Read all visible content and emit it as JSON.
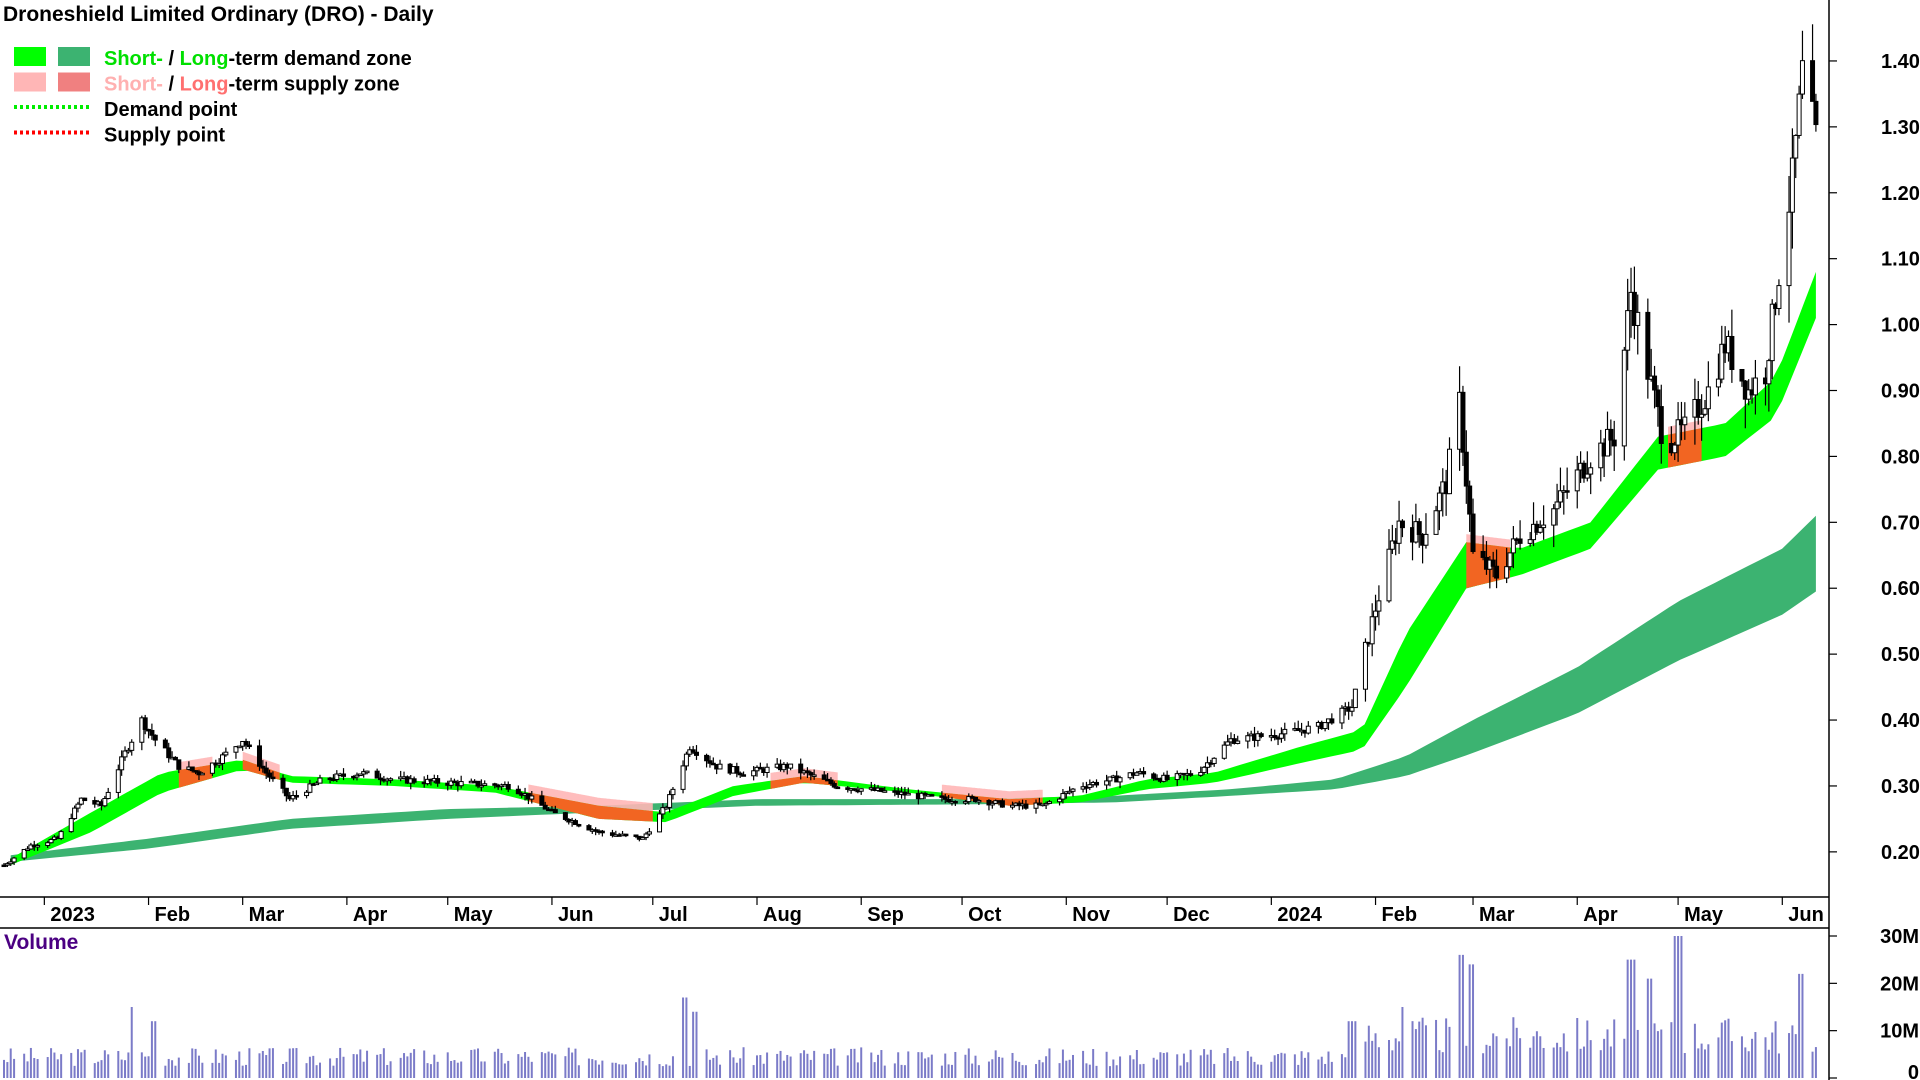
{
  "chart_data": {
    "type": "candlestick",
    "title": "Droneshield Limited Ordinary (DRO) - Daily",
    "colors": {
      "short_demand": "#00ff00",
      "long_demand": "#3cb371",
      "short_supply": "#ffb6b6",
      "long_supply": "#f08080",
      "zone_overlap": "#f26522",
      "volume_bar": "#7b7bc8",
      "volume_title": "#4b0082",
      "demand_point": "#00ee00",
      "supply_point": "#ff0000"
    },
    "legend": [
      {
        "parts": [
          {
            "text": "Short-",
            "color": "#00e000"
          },
          {
            "text": " / ",
            "color": "#000000"
          },
          {
            "text": "Long",
            "color": "#00e000"
          },
          {
            "text": "-term demand zone",
            "color": "#000000"
          }
        ],
        "swatches": [
          "#00ff00",
          "#3cb371"
        ]
      },
      {
        "parts": [
          {
            "text": "Short-",
            "color": "#ffb0b0"
          },
          {
            "text": " / ",
            "color": "#000000"
          },
          {
            "text": "Long",
            "color": "#ff7070"
          },
          {
            "text": "-term supply zone",
            "color": "#000000"
          }
        ],
        "swatches": [
          "#ffb6b6",
          "#f08080"
        ]
      },
      {
        "parts": [
          {
            "text": "Demand point",
            "color": "#000000"
          }
        ],
        "dotted": "#00ee00"
      },
      {
        "parts": [
          {
            "text": "Supply point",
            "color": "#000000"
          }
        ],
        "dotted": "#ff0000"
      }
    ],
    "x_labels": [
      {
        "label": "2023",
        "date": "2023-01-01"
      },
      {
        "label": "Feb",
        "date": "2023-02-01"
      },
      {
        "label": "Mar",
        "date": "2023-03-01"
      },
      {
        "label": "Apr",
        "date": "2023-04-01"
      },
      {
        "label": "May",
        "date": "2023-05-01"
      },
      {
        "label": "Jun",
        "date": "2023-06-01"
      },
      {
        "label": "Jul",
        "date": "2023-07-01"
      },
      {
        "label": "Aug",
        "date": "2023-08-01"
      },
      {
        "label": "Sep",
        "date": "2023-09-01"
      },
      {
        "label": "Oct",
        "date": "2023-10-01"
      },
      {
        "label": "Nov",
        "date": "2023-11-01"
      },
      {
        "label": "Dec",
        "date": "2023-12-01"
      },
      {
        "label": "2024",
        "date": "2024-01-01"
      },
      {
        "label": "Feb",
        "date": "2024-02-01"
      },
      {
        "label": "Mar",
        "date": "2024-03-01"
      },
      {
        "label": "Apr",
        "date": "2024-04-01"
      },
      {
        "label": "May",
        "date": "2024-05-01"
      },
      {
        "label": "Jun",
        "date": "2024-06-01"
      }
    ],
    "x_range": [
      "2022-12-20",
      "2024-06-14"
    ],
    "y_ticks": [
      "0.20",
      "0.30",
      "0.40",
      "0.50",
      "0.60",
      "0.70",
      "0.80",
      "0.90",
      "1.00",
      "1.10",
      "1.20",
      "1.30",
      "1.40"
    ],
    "y_range": [
      0.13,
      1.45
    ],
    "price_path": [
      [
        "2022-12-20",
        0.18
      ],
      [
        "2022-12-28",
        0.21
      ],
      [
        "2023-01-05",
        0.22
      ],
      [
        "2023-01-12",
        0.28
      ],
      [
        "2023-01-18",
        0.27
      ],
      [
        "2023-01-25",
        0.35
      ],
      [
        "2023-01-30",
        0.4
      ],
      [
        "2023-02-03",
        0.37
      ],
      [
        "2023-02-10",
        0.33
      ],
      [
        "2023-02-16",
        0.32
      ],
      [
        "2023-02-22",
        0.34
      ],
      [
        "2023-03-01",
        0.37
      ],
      [
        "2023-03-08",
        0.32
      ],
      [
        "2023-03-15",
        0.28
      ],
      [
        "2023-03-25",
        0.31
      ],
      [
        "2023-04-05",
        0.32
      ],
      [
        "2023-04-15",
        0.31
      ],
      [
        "2023-05-01",
        0.305
      ],
      [
        "2023-05-20",
        0.3
      ],
      [
        "2023-06-01",
        0.26
      ],
      [
        "2023-06-15",
        0.23
      ],
      [
        "2023-06-28",
        0.22
      ],
      [
        "2023-07-05",
        0.27
      ],
      [
        "2023-07-12",
        0.36
      ],
      [
        "2023-07-20",
        0.33
      ],
      [
        "2023-07-28",
        0.32
      ],
      [
        "2023-08-10",
        0.33
      ],
      [
        "2023-08-25",
        0.3
      ],
      [
        "2023-09-10",
        0.29
      ],
      [
        "2023-09-25",
        0.28
      ],
      [
        "2023-10-05",
        0.28
      ],
      [
        "2023-10-15",
        0.27
      ],
      [
        "2023-10-25",
        0.27
      ],
      [
        "2023-11-05",
        0.3
      ],
      [
        "2023-11-15",
        0.31
      ],
      [
        "2023-11-22",
        0.32
      ],
      [
        "2023-12-01",
        0.31
      ],
      [
        "2023-12-10",
        0.32
      ],
      [
        "2023-12-20",
        0.37
      ],
      [
        "2024-01-05",
        0.38
      ],
      [
        "2024-01-15",
        0.39
      ],
      [
        "2024-01-25",
        0.42
      ],
      [
        "2024-02-01",
        0.57
      ],
      [
        "2024-02-08",
        0.7
      ],
      [
        "2024-02-15",
        0.68
      ],
      [
        "2024-02-22",
        0.76
      ],
      [
        "2024-02-26",
        0.88
      ],
      [
        "2024-03-01",
        0.65
      ],
      [
        "2024-03-08",
        0.62
      ],
      [
        "2024-03-15",
        0.68
      ],
      [
        "2024-03-25",
        0.72
      ],
      [
        "2024-04-05",
        0.8
      ],
      [
        "2024-04-12",
        0.83
      ],
      [
        "2024-04-17",
        1.05
      ],
      [
        "2024-04-22",
        0.93
      ],
      [
        "2024-04-27",
        0.82
      ],
      [
        "2024-05-03",
        0.84
      ],
      [
        "2024-05-10",
        0.9
      ],
      [
        "2024-05-15",
        0.97
      ],
      [
        "2024-05-22",
        0.9
      ],
      [
        "2024-05-27",
        0.93
      ],
      [
        "2024-05-31",
        1.08
      ],
      [
        "2024-06-04",
        1.22
      ],
      [
        "2024-06-07",
        1.38
      ],
      [
        "2024-06-11",
        1.28
      ]
    ],
    "short_zone_upper": [
      [
        "2022-12-22",
        0.19
      ],
      [
        "2023-01-15",
        0.26
      ],
      [
        "2023-02-05",
        0.32
      ],
      [
        "2023-03-01",
        0.34
      ],
      [
        "2023-03-15",
        0.315
      ],
      [
        "2023-04-15",
        0.31
      ],
      [
        "2023-05-15",
        0.3
      ],
      [
        "2023-06-15",
        0.27
      ],
      [
        "2023-07-05",
        0.26
      ],
      [
        "2023-07-25",
        0.3
      ],
      [
        "2023-08-15",
        0.315
      ],
      [
        "2023-09-15",
        0.295
      ],
      [
        "2023-10-15",
        0.28
      ],
      [
        "2023-11-05",
        0.285
      ],
      [
        "2023-11-25",
        0.31
      ],
      [
        "2023-12-15",
        0.32
      ],
      [
        "2024-01-10",
        0.36
      ],
      [
        "2024-01-28",
        0.385
      ],
      [
        "2024-02-10",
        0.53
      ],
      [
        "2024-02-28",
        0.67
      ],
      [
        "2024-03-15",
        0.66
      ],
      [
        "2024-04-05",
        0.7
      ],
      [
        "2024-04-25",
        0.83
      ],
      [
        "2024-05-15",
        0.85
      ],
      [
        "2024-05-30",
        0.92
      ],
      [
        "2024-06-11",
        1.08
      ]
    ],
    "short_zone_lower": [
      [
        "2022-12-22",
        0.18
      ],
      [
        "2023-01-15",
        0.23
      ],
      [
        "2023-02-05",
        0.29
      ],
      [
        "2023-03-01",
        0.325
      ],
      [
        "2023-03-15",
        0.305
      ],
      [
        "2023-04-15",
        0.3
      ],
      [
        "2023-05-15",
        0.29
      ],
      [
        "2023-06-15",
        0.25
      ],
      [
        "2023-07-05",
        0.245
      ],
      [
        "2023-07-25",
        0.285
      ],
      [
        "2023-08-15",
        0.305
      ],
      [
        "2023-09-15",
        0.29
      ],
      [
        "2023-10-15",
        0.27
      ],
      [
        "2023-11-05",
        0.275
      ],
      [
        "2023-11-25",
        0.295
      ],
      [
        "2023-12-15",
        0.305
      ],
      [
        "2024-01-10",
        0.335
      ],
      [
        "2024-01-28",
        0.355
      ],
      [
        "2024-02-10",
        0.45
      ],
      [
        "2024-02-28",
        0.6
      ],
      [
        "2024-03-15",
        0.62
      ],
      [
        "2024-04-05",
        0.66
      ],
      [
        "2024-04-25",
        0.78
      ],
      [
        "2024-05-15",
        0.8
      ],
      [
        "2024-05-30",
        0.86
      ],
      [
        "2024-06-11",
        1.01
      ]
    ],
    "long_zone_upper": [
      [
        "2022-12-22",
        0.195
      ],
      [
        "2023-02-01",
        0.22
      ],
      [
        "2023-03-15",
        0.25
      ],
      [
        "2023-05-01",
        0.265
      ],
      [
        "2023-06-15",
        0.27
      ],
      [
        "2023-08-01",
        0.28
      ],
      [
        "2023-10-01",
        0.28
      ],
      [
        "2023-11-15",
        0.285
      ],
      [
        "2023-12-20",
        0.295
      ],
      [
        "2024-01-20",
        0.31
      ],
      [
        "2024-02-10",
        0.345
      ],
      [
        "2024-03-01",
        0.4
      ],
      [
        "2024-04-01",
        0.48
      ],
      [
        "2024-05-01",
        0.58
      ],
      [
        "2024-06-01",
        0.66
      ],
      [
        "2024-06-11",
        0.71
      ]
    ],
    "long_zone_lower": [
      [
        "2022-12-22",
        0.185
      ],
      [
        "2023-02-01",
        0.205
      ],
      [
        "2023-03-15",
        0.235
      ],
      [
        "2023-05-01",
        0.25
      ],
      [
        "2023-06-15",
        0.26
      ],
      [
        "2023-08-01",
        0.27
      ],
      [
        "2023-10-01",
        0.272
      ],
      [
        "2023-11-15",
        0.275
      ],
      [
        "2023-12-20",
        0.285
      ],
      [
        "2024-01-20",
        0.295
      ],
      [
        "2024-02-10",
        0.315
      ],
      [
        "2024-03-01",
        0.35
      ],
      [
        "2024-04-01",
        0.41
      ],
      [
        "2024-05-01",
        0.49
      ],
      [
        "2024-06-01",
        0.56
      ],
      [
        "2024-06-11",
        0.595
      ]
    ],
    "overlap_segments": [
      [
        "2023-02-10",
        "2023-02-20"
      ],
      [
        "2023-03-01",
        "2023-03-12"
      ],
      [
        "2023-05-25",
        "2023-07-01"
      ],
      [
        "2023-08-05",
        "2023-08-25"
      ],
      [
        "2023-09-25",
        "2023-10-25"
      ],
      [
        "2024-02-28",
        "2024-03-12"
      ],
      [
        "2024-04-28",
        "2024-05-08"
      ]
    ],
    "volume": {
      "title": "Volume",
      "ticks": [
        "0",
        "10M",
        "20M",
        "30M"
      ],
      "range": [
        0,
        30
      ],
      "unit": "M",
      "spikes": [
        [
          "2023-01-28",
          15
        ],
        [
          "2023-02-03",
          12
        ],
        [
          "2023-07-10",
          17
        ],
        [
          "2023-07-14",
          14
        ],
        [
          "2024-02-26",
          26
        ],
        [
          "2024-03-01",
          24
        ],
        [
          "2024-04-17",
          25
        ],
        [
          "2024-04-22",
          21
        ],
        [
          "2024-05-01",
          30
        ],
        [
          "2024-06-07",
          22
        ],
        [
          "2024-02-10",
          15
        ],
        [
          "2024-01-25",
          12
        ]
      ]
    }
  }
}
